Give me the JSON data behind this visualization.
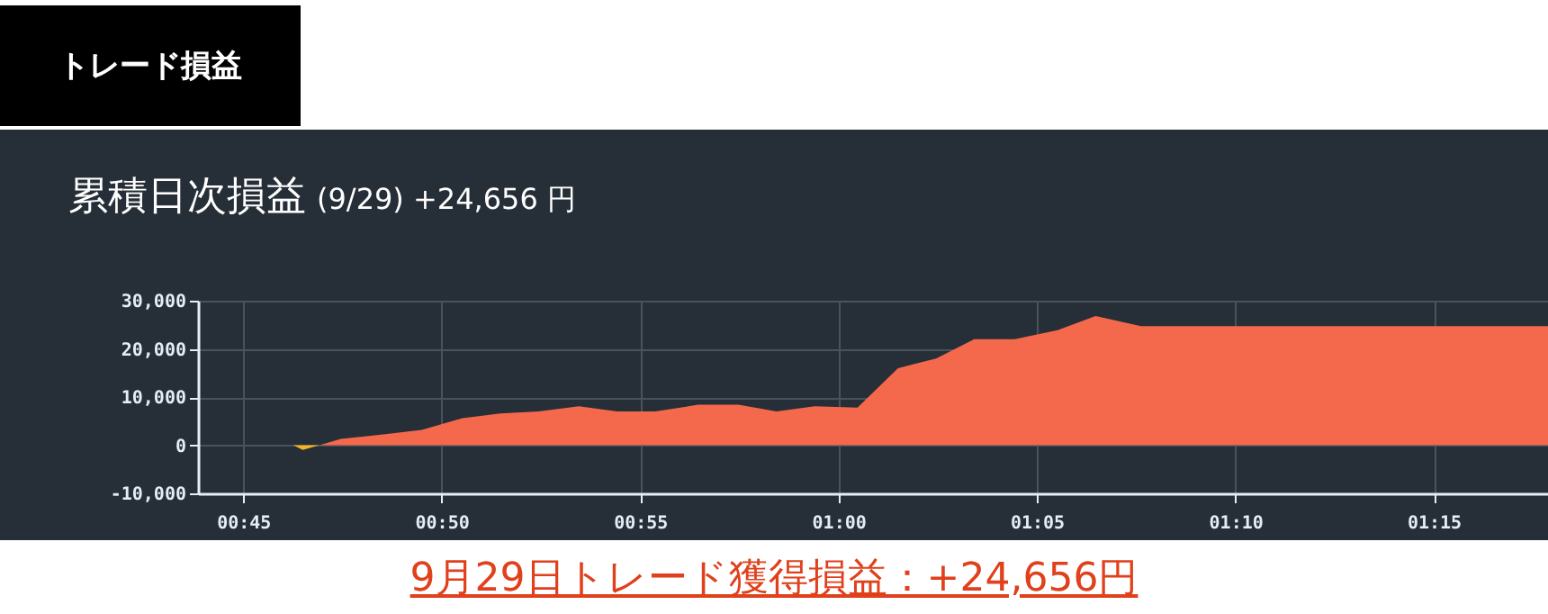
{
  "chart_data": {
    "type": "area",
    "title": "累積日次損益",
    "subtitle": "(9/29) +24,656 円",
    "annotations": [
      "トレード損益",
      "9月29日トレード獲得損益：+24,656円"
    ],
    "series": [
      {
        "color": "#f5b32a",
        "x": [
          0.771,
          0.775,
          0.782
        ],
        "values": [
          0,
          -1000,
          0
        ]
      },
      {
        "color": "#f4694b",
        "x": [
          0.782,
          0.791,
          0.808,
          0.825,
          0.842,
          0.858,
          0.874,
          0.891,
          0.907,
          0.923,
          0.941,
          0.958,
          0.974,
          0.99,
          1.008,
          1.025,
          1.041,
          1.057,
          1.074,
          1.092,
          1.108,
          1.127,
          1.298
        ],
        "values": [
          0,
          1300,
          2200,
          3200,
          5600,
          6600,
          7000,
          8100,
          7000,
          7000,
          8400,
          8400,
          7000,
          8100,
          7800,
          16000,
          18000,
          22000,
          22000,
          23900,
          26800,
          24700,
          24700
        ]
      }
    ],
    "xlim": [
      0.731,
      1.298
    ],
    "xticks": [
      {
        "value": 0.75,
        "label": "00:45"
      },
      {
        "value": 0.8333,
        "label": "00:50"
      },
      {
        "value": 0.9167,
        "label": "00:55"
      },
      {
        "value": 1,
        "label": "01:00"
      },
      {
        "value": 1.0833,
        "label": "01:05"
      },
      {
        "value": 1.1667,
        "label": "01:10"
      },
      {
        "value": 1.25,
        "label": "01:15"
      }
    ],
    "ylim": [
      -10000,
      30000
    ],
    "yticks": [
      {
        "value": -10000,
        "label": "-10,000"
      },
      {
        "value": 0,
        "label": "0"
      },
      {
        "value": 10000,
        "label": "10,000"
      },
      {
        "value": 20000,
        "label": "20,000"
      },
      {
        "value": 30000,
        "label": "30,000"
      }
    ],
    "grid": true
  }
}
